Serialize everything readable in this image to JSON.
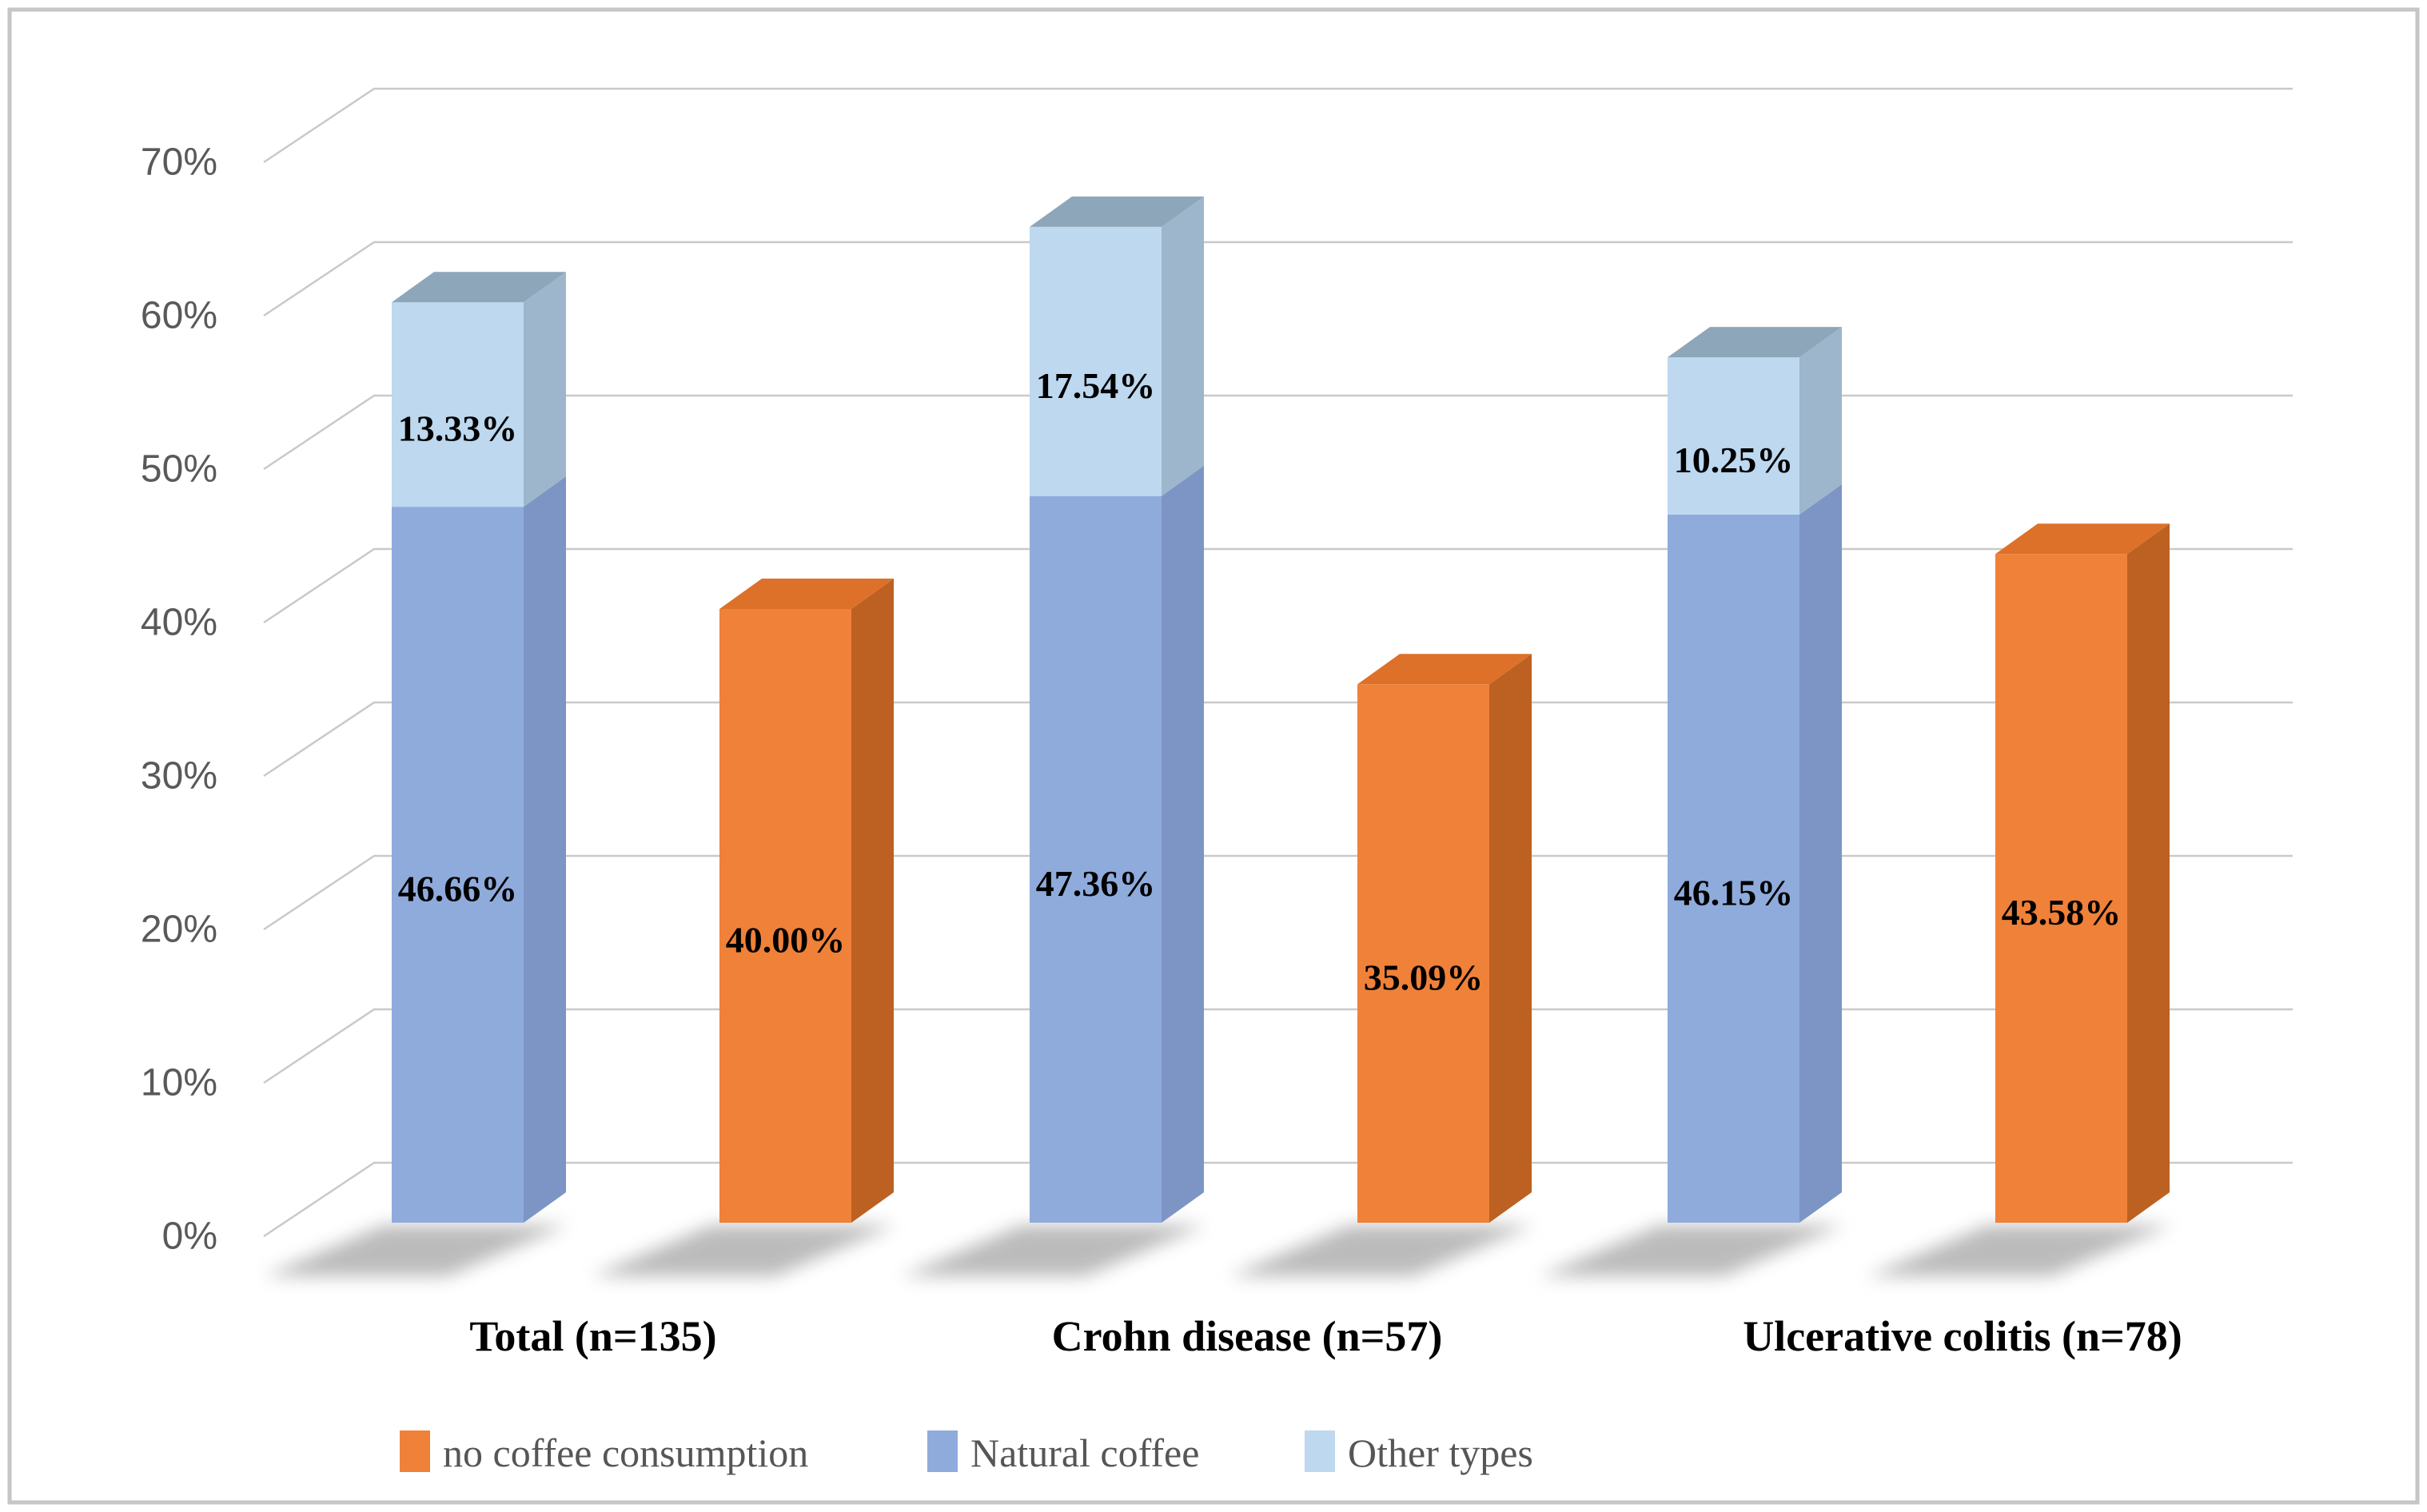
{
  "chart_data": {
    "type": "bar",
    "variant": "3d-column-stacked",
    "title": "",
    "categories": [
      "Total (n=135)",
      "Crohn disease (n=57)",
      "Ulcerative colitis (n=78)"
    ],
    "y_ticks": [
      "0%",
      "10%",
      "20%",
      "30%",
      "40%",
      "50%",
      "60%",
      "70%"
    ],
    "ylim": [
      0,
      70
    ],
    "grid": true,
    "legend_position": "bottom",
    "series": [
      {
        "name": "no coffee consumption",
        "stack": "b",
        "values": [
          40.0,
          35.09,
          43.58
        ],
        "labels": [
          "40.00%",
          "35.09%",
          "43.58%"
        ],
        "colors": {
          "front": "#F08138",
          "side": "#BC6121",
          "top": "#DD7129"
        }
      },
      {
        "name": "Natural coffee",
        "stack": "a",
        "values": [
          46.66,
          47.36,
          46.15
        ],
        "labels": [
          "46.66%",
          "47.36%",
          "46.15%"
        ],
        "colors": {
          "front": "#8FABDC",
          "side": "#7C95C4",
          "top": "#7F98C0"
        }
      },
      {
        "name": "Other types",
        "stack": "a",
        "values": [
          13.33,
          17.54,
          10.25
        ],
        "labels": [
          "13.33%",
          "17.54%",
          "10.25%"
        ],
        "colors": {
          "front": "#BDD8EF",
          "side": "#9DB6CC",
          "top": "#8EA6BA"
        }
      }
    ],
    "style": {
      "background": "#FFFFFF",
      "frame_border": "#C6C6C6",
      "grid_color": "#C9C9C9",
      "axis_text_color": "#595959",
      "data_label_color": "#000000",
      "category_label_color": "#000000",
      "legend_text_color": "#565656",
      "shadow_color": "#8F8F8F"
    }
  }
}
